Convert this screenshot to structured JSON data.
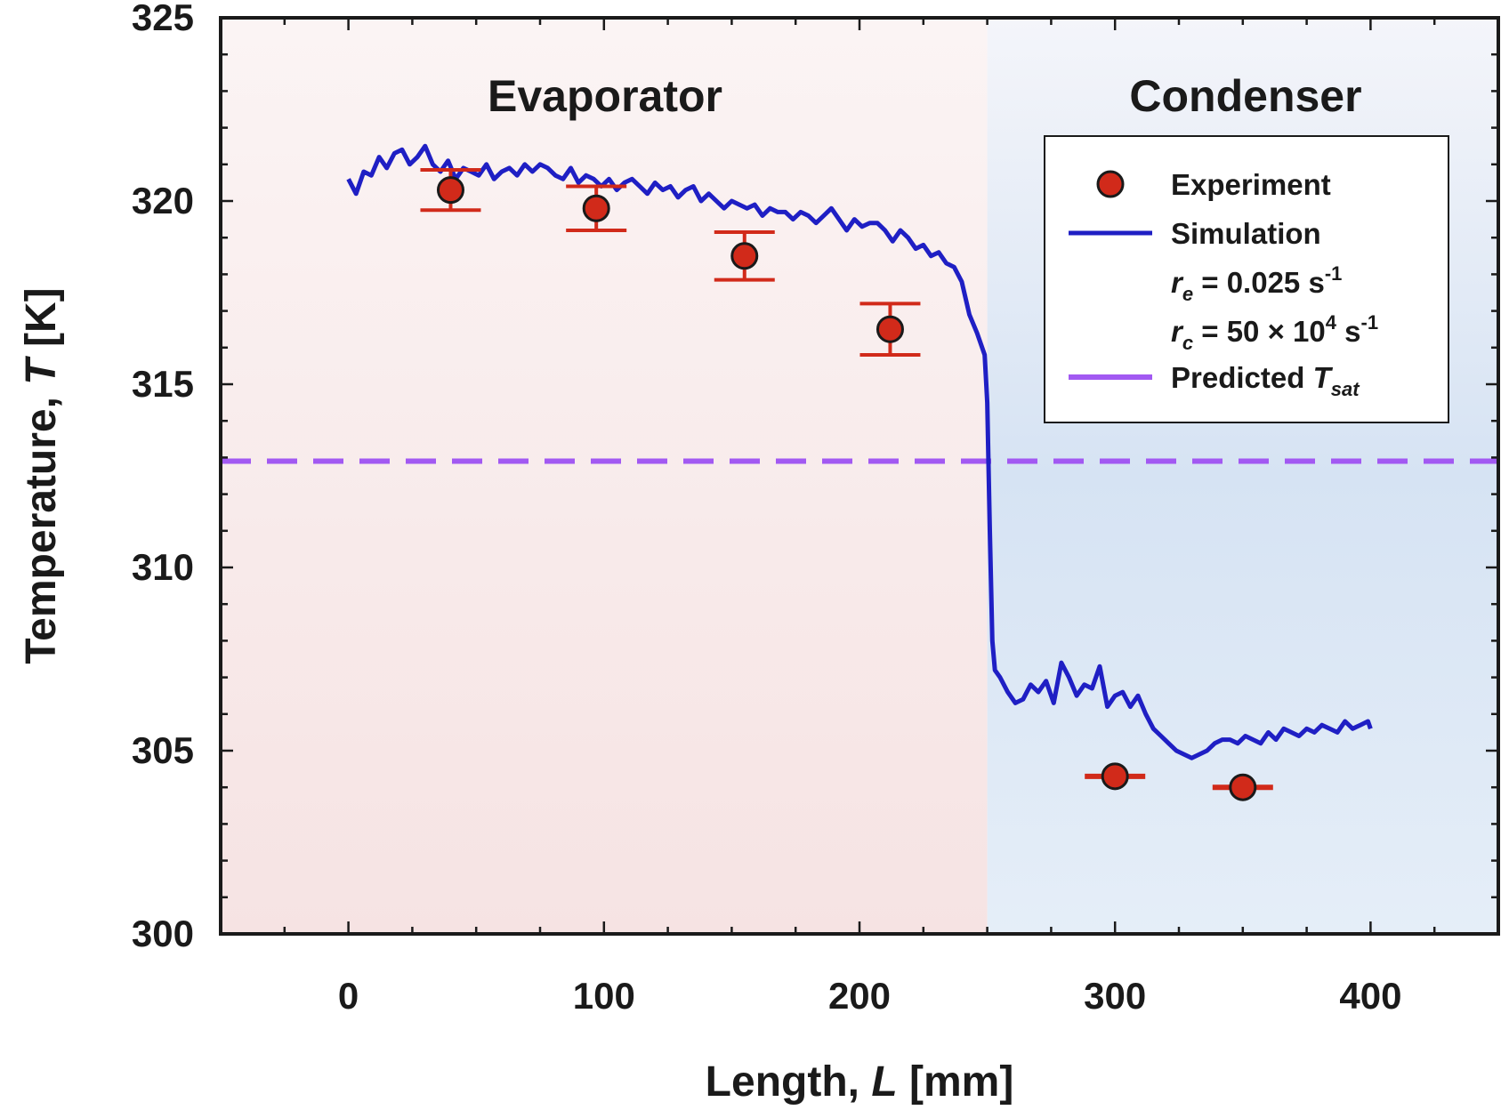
{
  "chart_data": {
    "type": "line",
    "title": "",
    "xlabel": "Length, ",
    "xlabel_symbol": "L",
    "xlabel_unit": " [mm]",
    "ylabel": "Temperature, ",
    "ylabel_symbol": "T",
    "ylabel_unit": " [K]",
    "xlim": [
      -50,
      450
    ],
    "ylim": [
      300,
      325
    ],
    "xticks": [
      0,
      100,
      200,
      300,
      400
    ],
    "yticks": [
      300,
      305,
      310,
      315,
      320,
      325
    ],
    "x_tick_labels": [
      "0",
      "100",
      "200",
      "300",
      "400"
    ],
    "y_tick_labels": [
      "300",
      "305",
      "310",
      "315",
      "320",
      "325"
    ],
    "grid": false,
    "regions": [
      {
        "label": "Evaporator",
        "x_range": [
          -50,
          250
        ],
        "color": "#f7e4e4"
      },
      {
        "label": "Condenser",
        "x_range": [
          250,
          450
        ],
        "color": "#dce7f3"
      }
    ],
    "legend": {
      "placement": "top-right",
      "entries": [
        {
          "label": "Experiment",
          "marker": "circle",
          "color": "#d12a1a"
        },
        {
          "label": "Simulation",
          "marker": "line",
          "color": "#1f1fc4"
        },
        {
          "label_prefix": "r",
          "label_subscript": "e",
          "label_rest": " = 0.025 s",
          "label_superscript": "-1"
        },
        {
          "label_prefix": "r",
          "label_subscript": "c",
          "label_rest": " = 50 × 10",
          "label_superscript": "4",
          "label_tail": " s",
          "label_superscript2": "-1"
        },
        {
          "label": "Predicted ",
          "label_symbol": "T",
          "label_subscript": "sat",
          "marker": "dashed-line",
          "color": "#a259f2"
        }
      ]
    },
    "series": [
      {
        "name": "Experiment",
        "kind": "scatter-errorbar",
        "color": "#d12a1a",
        "points": [
          {
            "x": 40,
            "y": 320.3,
            "err": 0.55
          },
          {
            "x": 97,
            "y": 319.8,
            "err": 0.6
          },
          {
            "x": 155,
            "y": 318.5,
            "err": 0.65
          },
          {
            "x": 212,
            "y": 316.5,
            "err": 0.7
          },
          {
            "x": 300,
            "y": 304.3,
            "err": 0.05
          },
          {
            "x": 350,
            "y": 304.0,
            "err": 0.05
          }
        ]
      },
      {
        "name": "Simulation",
        "kind": "line",
        "color": "#1f1fc4",
        "x": [
          0,
          3,
          6,
          9,
          12,
          15,
          18,
          21,
          24,
          27,
          30,
          33,
          36,
          39,
          42,
          45,
          48,
          51,
          54,
          57,
          60,
          63,
          66,
          69,
          72,
          75,
          78,
          81,
          84,
          87,
          90,
          93,
          96,
          99,
          102,
          105,
          108,
          111,
          114,
          117,
          120,
          123,
          126,
          129,
          132,
          135,
          138,
          141,
          144,
          147,
          150,
          153,
          156,
          159,
          162,
          165,
          168,
          171,
          174,
          177,
          180,
          183,
          186,
          189,
          192,
          195,
          198,
          201,
          204,
          207,
          210,
          213,
          216,
          219,
          222,
          225,
          228,
          231,
          234,
          237,
          240,
          243,
          246,
          249,
          250,
          251,
          252,
          253,
          255,
          258,
          261,
          264,
          267,
          270,
          273,
          276,
          279,
          282,
          285,
          288,
          291,
          294,
          297,
          300,
          303,
          306,
          309,
          312,
          315,
          318,
          321,
          324,
          327,
          330,
          333,
          336,
          339,
          342,
          345,
          348,
          351,
          354,
          357,
          360,
          363,
          366,
          369,
          372,
          375,
          378,
          381,
          384,
          387,
          390,
          393,
          396,
          399,
          400
        ],
        "y": [
          320.6,
          320.2,
          320.8,
          320.7,
          321.2,
          320.9,
          321.3,
          321.4,
          321.0,
          321.2,
          321.5,
          321.0,
          320.8,
          321.1,
          320.6,
          320.9,
          320.8,
          320.7,
          321.0,
          320.6,
          320.8,
          320.9,
          320.7,
          321.0,
          320.8,
          321.0,
          320.9,
          320.7,
          320.6,
          320.9,
          320.5,
          320.7,
          320.6,
          320.4,
          320.6,
          320.3,
          320.5,
          320.6,
          320.4,
          320.2,
          320.5,
          320.3,
          320.4,
          320.1,
          320.3,
          320.4,
          320.0,
          320.2,
          320.0,
          319.8,
          320.0,
          319.9,
          319.8,
          319.9,
          319.6,
          319.8,
          319.7,
          319.7,
          319.5,
          319.7,
          319.6,
          319.4,
          319.6,
          319.8,
          319.5,
          319.2,
          319.5,
          319.3,
          319.4,
          319.4,
          319.2,
          318.9,
          319.2,
          319.0,
          318.7,
          318.8,
          318.5,
          318.6,
          318.3,
          318.2,
          317.8,
          316.9,
          316.4,
          315.8,
          314.5,
          311.0,
          308.0,
          307.2,
          307.0,
          306.6,
          306.3,
          306.4,
          306.8,
          306.6,
          306.9,
          306.3,
          307.4,
          307.0,
          306.5,
          306.8,
          306.7,
          307.3,
          306.2,
          306.5,
          306.6,
          306.2,
          306.5,
          306.0,
          305.6,
          305.4,
          305.2,
          305.0,
          304.9,
          304.8,
          304.9,
          305.0,
          305.2,
          305.3,
          305.3,
          305.2,
          305.4,
          305.3,
          305.2,
          305.5,
          305.3,
          305.6,
          305.5,
          305.4,
          305.6,
          305.5,
          305.7,
          305.6,
          305.5,
          305.8,
          305.6,
          305.7,
          305.8,
          305.6
        ]
      },
      {
        "name": "Predicted Tsat",
        "kind": "hline",
        "color": "#a259f2",
        "y": 312.9
      }
    ]
  }
}
